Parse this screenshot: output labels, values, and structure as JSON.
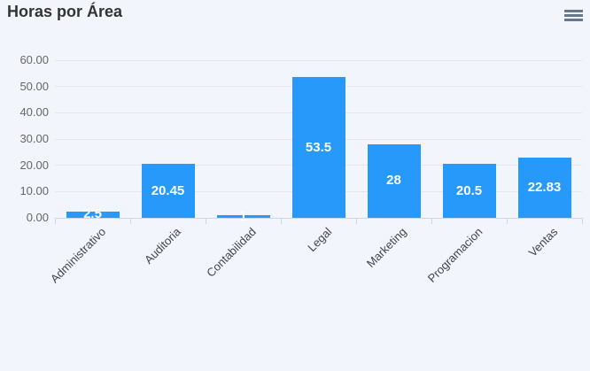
{
  "header": {
    "title": "Horas por Área"
  },
  "menu": {
    "icon": "hamburger-menu-icon"
  },
  "colors": {
    "background": "#f3f5fc",
    "bar": "#2699fb",
    "grid_line": "#e6e6e6",
    "axis_line": "#ccd6eb",
    "y_label": "#666666",
    "x_label": "#3f454b",
    "title_text": "#333333",
    "data_label": "#ffffff",
    "menu_icon": "#66788c"
  },
  "chart_data": {
    "type": "bar",
    "title": "Horas por Área",
    "categories": [
      "Administrativo",
      "Auditoria",
      "Contabilidad",
      "Legal",
      "Marketing",
      "Programacion",
      "Ventas"
    ],
    "values": [
      2.5,
      20.45,
      1,
      53.5,
      28,
      20.5,
      22.83
    ],
    "data_labels": [
      "2.5",
      "20.45",
      "1",
      "53.5",
      "28",
      "20.5",
      "22.83"
    ],
    "xlabel": "",
    "ylabel": "",
    "ylim": [
      0,
      60
    ],
    "ytick_step": 10,
    "ytick_labels": [
      "0.00",
      "10.00",
      "20.00",
      "30.00",
      "40.00",
      "50.00",
      "60.00"
    ],
    "grid": true,
    "legend": false,
    "x_label_rotation": -45,
    "data_label_position": "center-inside"
  }
}
